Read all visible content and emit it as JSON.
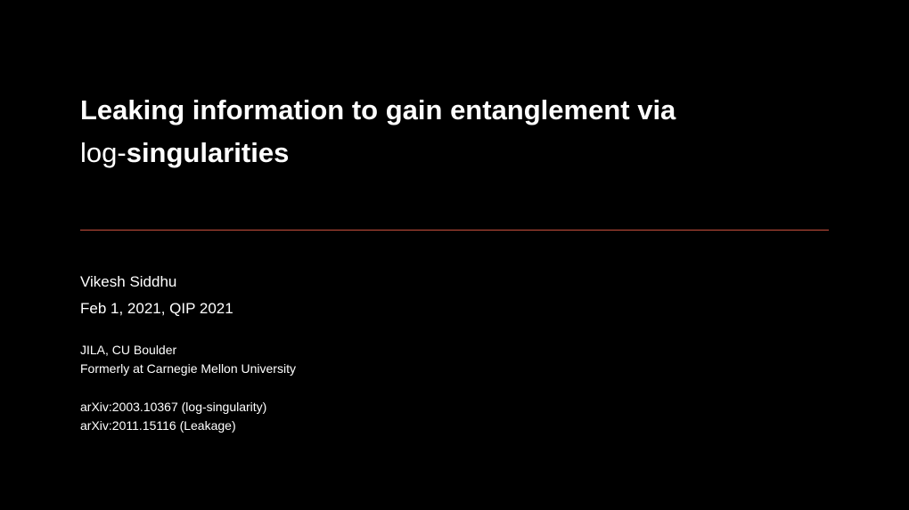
{
  "title": {
    "part1_bold": "Leaking information to gain entanglement via",
    "part2_light": "log-",
    "part2_bold": "singularities"
  },
  "author": "Vikesh Siddhu",
  "date": "Feb 1, 2021, QIP 2021",
  "affiliation": {
    "line1": "JILA, CU Boulder",
    "line2": "Formerly at Carnegie Mellon University"
  },
  "references": {
    "line1": "arXiv:2003.10367 (log-singularity)",
    "line2": "arXiv:2011.15116 (Leakage)"
  },
  "colors": {
    "background": "#000000",
    "text": "#ffffff",
    "divider": "#c94f3d"
  }
}
